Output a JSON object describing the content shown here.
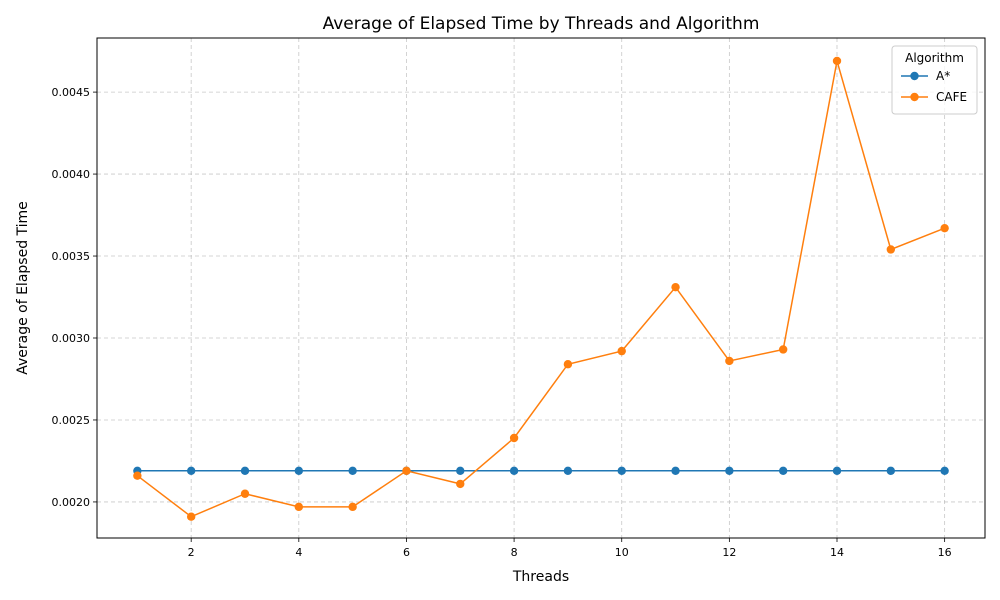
{
  "chart_data": {
    "type": "line",
    "title": "Average of Elapsed Time by Threads and Algorithm",
    "xlabel": "Threads",
    "ylabel": "Average of Elapsed Time",
    "x": [
      1,
      2,
      3,
      4,
      5,
      6,
      7,
      8,
      9,
      10,
      11,
      12,
      13,
      14,
      15,
      16
    ],
    "xlim": [
      0.25,
      16.75
    ],
    "ylim": [
      0.00178,
      0.00483
    ],
    "xticks": [
      2,
      4,
      6,
      8,
      10,
      12,
      14,
      16
    ],
    "yticks": [
      0.002,
      0.0025,
      0.003,
      0.0035,
      0.004,
      0.0045
    ],
    "ytick_labels": [
      "0.0020",
      "0.0025",
      "0.0030",
      "0.0035",
      "0.0040",
      "0.0045"
    ],
    "grid": true,
    "grid_style": "dashed",
    "legend": {
      "title": "Algorithm",
      "placement": "top-right"
    },
    "series": [
      {
        "name": "A*",
        "color": "#1f77b4",
        "marker": "circle",
        "values": [
          0.00219,
          0.00219,
          0.00219,
          0.00219,
          0.00219,
          0.00219,
          0.00219,
          0.00219,
          0.00219,
          0.00219,
          0.00219,
          0.00219,
          0.00219,
          0.00219,
          0.00219,
          0.00219
        ]
      },
      {
        "name": "CAFE",
        "color": "#ff7f0e",
        "marker": "circle",
        "values": [
          0.00216,
          0.00191,
          0.00205,
          0.00197,
          0.00197,
          0.00219,
          0.00211,
          0.00239,
          0.00284,
          0.00292,
          0.00331,
          0.00286,
          0.00293,
          0.00469,
          0.00354,
          0.00367
        ]
      }
    ]
  }
}
